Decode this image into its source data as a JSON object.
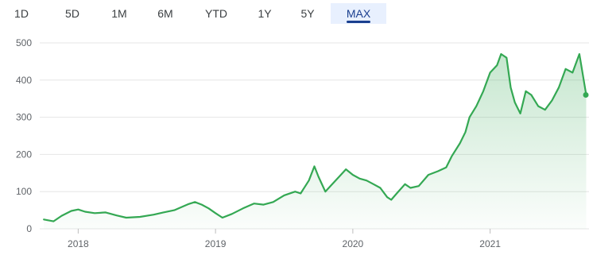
{
  "ranges": {
    "items": [
      {
        "label": "1D",
        "active": false
      },
      {
        "label": "5D",
        "active": false
      },
      {
        "label": "1M",
        "active": false
      },
      {
        "label": "6M",
        "active": false
      },
      {
        "label": "YTD",
        "active": false
      },
      {
        "label": "1Y",
        "active": false
      },
      {
        "label": "5Y",
        "active": false
      },
      {
        "label": "MAX",
        "active": true
      }
    ]
  },
  "colors": {
    "line": "#34a853",
    "fill": "#34a853",
    "grid": "#e6e6e6",
    "active_tab": "#e8f0fe",
    "active_text": "#1a3f8f"
  },
  "chart_data": {
    "type": "area",
    "title": "",
    "xlabel": "",
    "ylabel": "",
    "ylim": [
      0,
      500
    ],
    "yticks": [
      "0",
      "100",
      "200",
      "300",
      "400",
      "500"
    ],
    "xticks": [
      "2018",
      "2019",
      "2020",
      "2021"
    ],
    "grid": true,
    "series": [
      {
        "values": [
          [
            2017.75,
            25
          ],
          [
            2017.82,
            20
          ],
          [
            2017.88,
            35
          ],
          [
            2017.95,
            48
          ],
          [
            2018.0,
            52
          ],
          [
            2018.05,
            46
          ],
          [
            2018.12,
            42
          ],
          [
            2018.2,
            44
          ],
          [
            2018.28,
            36
          ],
          [
            2018.35,
            30
          ],
          [
            2018.45,
            32
          ],
          [
            2018.55,
            38
          ],
          [
            2018.62,
            44
          ],
          [
            2018.7,
            50
          ],
          [
            2018.75,
            58
          ],
          [
            2018.8,
            66
          ],
          [
            2018.85,
            72
          ],
          [
            2018.9,
            65
          ],
          [
            2018.95,
            55
          ],
          [
            2019.0,
            42
          ],
          [
            2019.05,
            30
          ],
          [
            2019.12,
            40
          ],
          [
            2019.2,
            55
          ],
          [
            2019.28,
            68
          ],
          [
            2019.35,
            65
          ],
          [
            2019.42,
            72
          ],
          [
            2019.5,
            90
          ],
          [
            2019.58,
            100
          ],
          [
            2019.62,
            95
          ],
          [
            2019.68,
            130
          ],
          [
            2019.72,
            168
          ],
          [
            2019.75,
            140
          ],
          [
            2019.8,
            100
          ],
          [
            2019.85,
            120
          ],
          [
            2019.9,
            140
          ],
          [
            2019.95,
            160
          ],
          [
            2020.0,
            145
          ],
          [
            2020.05,
            135
          ],
          [
            2020.1,
            130
          ],
          [
            2020.15,
            120
          ],
          [
            2020.2,
            110
          ],
          [
            2020.25,
            85
          ],
          [
            2020.28,
            78
          ],
          [
            2020.32,
            95
          ],
          [
            2020.38,
            120
          ],
          [
            2020.42,
            110
          ],
          [
            2020.48,
            115
          ],
          [
            2020.55,
            145
          ],
          [
            2020.62,
            155
          ],
          [
            2020.68,
            165
          ],
          [
            2020.72,
            195
          ],
          [
            2020.78,
            230
          ],
          [
            2020.82,
            260
          ],
          [
            2020.85,
            300
          ],
          [
            2020.9,
            330
          ],
          [
            2020.95,
            370
          ],
          [
            2021.0,
            420
          ],
          [
            2021.05,
            440
          ],
          [
            2021.08,
            470
          ],
          [
            2021.12,
            460
          ],
          [
            2021.15,
            380
          ],
          [
            2021.18,
            340
          ],
          [
            2021.22,
            310
          ],
          [
            2021.26,
            370
          ],
          [
            2021.3,
            360
          ],
          [
            2021.35,
            330
          ],
          [
            2021.4,
            320
          ],
          [
            2021.45,
            345
          ],
          [
            2021.5,
            380
          ],
          [
            2021.55,
            430
          ],
          [
            2021.6,
            420
          ],
          [
            2021.65,
            470
          ],
          [
            2021.7,
            360
          ]
        ]
      }
    ]
  }
}
